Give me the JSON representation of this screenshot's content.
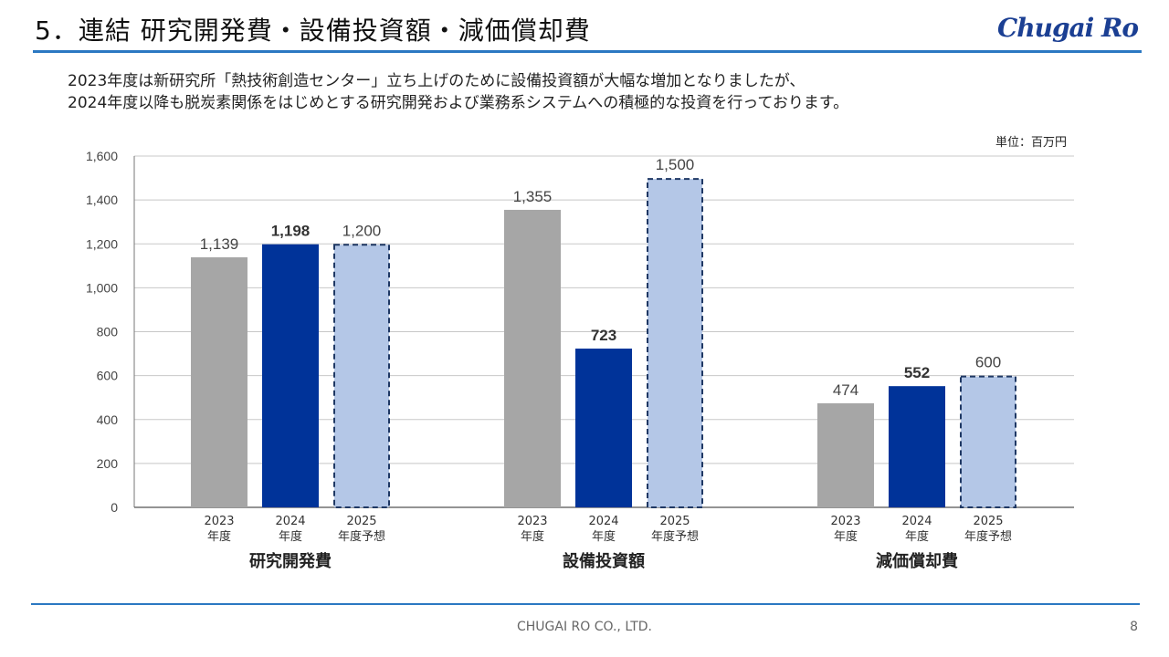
{
  "header": {
    "title": "5．連結 研究開発費・設備投資額・減価償却費",
    "logo_text": "Chugai Ro"
  },
  "intro": {
    "line1": "2023年度は新研究所「熱技術創造センター」立ち上げのために設備投資額が大幅な増加となりましたが、",
    "line2": "2024年度以降も脱炭素関係をはじめとする研究開発および業務系システムへの積極的な投資を行っております。"
  },
  "unit_label": "単位：百万円",
  "footer": {
    "company": "CHUGAI RO CO., LTD.",
    "page_number": "8"
  },
  "colors": {
    "accent_line": "#2b78c2",
    "bar_2023": "#a6a6a6",
    "bar_2024": "#003399",
    "bar_2025": "#b4c7e7",
    "dashed_border": "#1f3864",
    "logo": "#1b3f93"
  },
  "chart_data": {
    "type": "bar",
    "ylim": [
      0,
      1600
    ],
    "yticks": [
      0,
      200,
      400,
      600,
      800,
      1000,
      1200,
      1400,
      1600
    ],
    "ytick_labels": [
      "0",
      "200",
      "400",
      "600",
      "800",
      "1,000",
      "1,200",
      "1,400",
      "1,600"
    ],
    "grid": true,
    "period_labels": [
      [
        "2023",
        "年度"
      ],
      [
        "2024",
        "年度"
      ],
      [
        "2025",
        "年度予想"
      ]
    ],
    "groups": [
      {
        "name": "研究開発費",
        "values": [
          1139,
          1198,
          1200
        ],
        "labels": [
          "1,139",
          "1,198",
          "1,200"
        ]
      },
      {
        "name": "設備投資額",
        "values": [
          1355,
          723,
          1500
        ],
        "labels": [
          "1,355",
          "723",
          "1,500"
        ]
      },
      {
        "name": "減価償却費",
        "values": [
          474,
          552,
          600
        ],
        "labels": [
          "474",
          "552",
          "600"
        ]
      }
    ]
  }
}
